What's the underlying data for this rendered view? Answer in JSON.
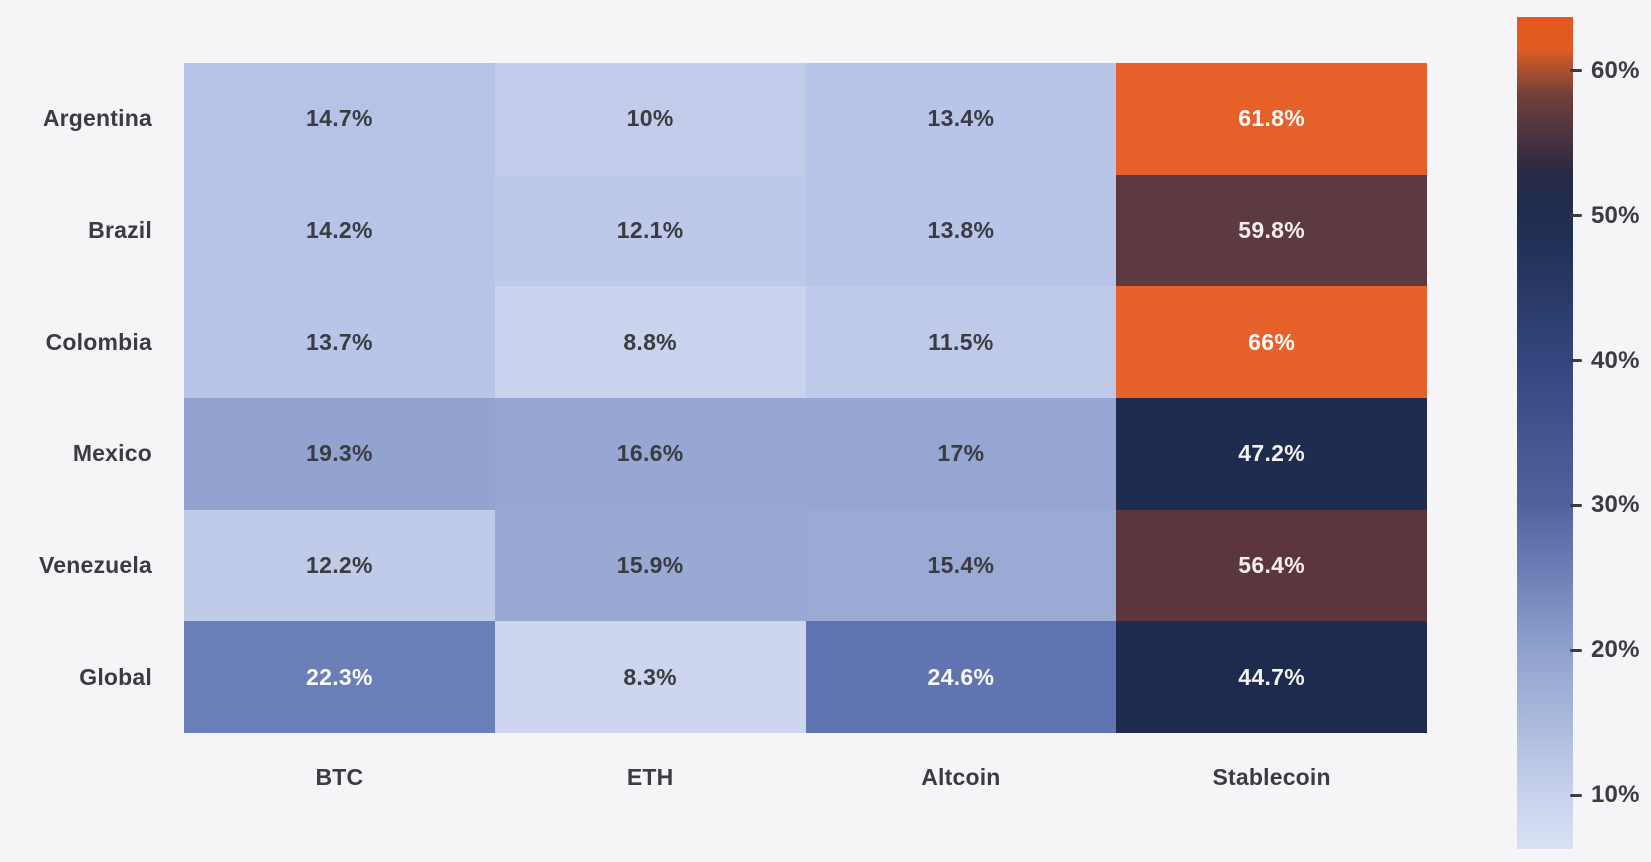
{
  "page": {
    "background": "#f5f4f6",
    "label_color": "#3b3b42"
  },
  "chart_data": {
    "type": "heatmap",
    "title": "",
    "rows": [
      "Argentina",
      "Brazil",
      "Colombia",
      "Mexico",
      "Venezuela",
      "Global"
    ],
    "columns": [
      "BTC",
      "ETH",
      "Altcoin",
      "Stablecoin"
    ],
    "unit": "%",
    "legend_position": "right-colorbar",
    "grid": false,
    "cells": [
      [
        {
          "value": 14.7,
          "label": "14.7%",
          "bg": "#b6c3e7",
          "fg": "#3b3b42"
        },
        {
          "value": 10,
          "label": "10%",
          "bg": "#c3cdeb",
          "fg": "#3b3b42"
        },
        {
          "value": 13.4,
          "label": "13.4%",
          "bg": "#b8c4e8",
          "fg": "#3b3b42"
        },
        {
          "value": 61.8,
          "label": "61.8%",
          "bg": "#e6612a",
          "fg": "#fdf9f6"
        }
      ],
      [
        {
          "value": 14.2,
          "label": "14.2%",
          "bg": "#b7c4e8",
          "fg": "#3b3b42"
        },
        {
          "value": 12.1,
          "label": "12.1%",
          "bg": "#bec9ea",
          "fg": "#3b3b42"
        },
        {
          "value": 13.8,
          "label": "13.8%",
          "bg": "#b8c5e8",
          "fg": "#3b3b42"
        },
        {
          "value": 59.8,
          "label": "59.8%",
          "bg": "#5d3a42",
          "fg": "#f6efec"
        }
      ],
      [
        {
          "value": 13.7,
          "label": "13.7%",
          "bg": "#b9c5e8",
          "fg": "#3b3b42"
        },
        {
          "value": 8.8,
          "label": "8.8%",
          "bg": "#c9d3ed",
          "fg": "#3b3b42"
        },
        {
          "value": 11.5,
          "label": "11.5%",
          "bg": "#bfcaea",
          "fg": "#3b3b42"
        },
        {
          "value": 66,
          "label": "66%",
          "bg": "#e6622a",
          "fg": "#fdf9f6"
        }
      ],
      [
        {
          "value": 19.3,
          "label": "19.3%",
          "bg": "#93a3d0",
          "fg": "#3b3b42"
        },
        {
          "value": 16.6,
          "label": "16.6%",
          "bg": "#97a6d2",
          "fg": "#3b3b42"
        },
        {
          "value": 17,
          "label": "17%",
          "bg": "#96a5d2",
          "fg": "#3b3b42"
        },
        {
          "value": 47.2,
          "label": "47.2%",
          "bg": "#1f2b4f",
          "fg": "#f4f1ee"
        }
      ],
      [
        {
          "value": 12.2,
          "label": "12.2%",
          "bg": "#c0cbea",
          "fg": "#3b3b42"
        },
        {
          "value": 15.9,
          "label": "15.9%",
          "bg": "#9aa9d4",
          "fg": "#3b3b42"
        },
        {
          "value": 15.4,
          "label": "15.4%",
          "bg": "#9baad4",
          "fg": "#3b3b42"
        },
        {
          "value": 56.4,
          "label": "56.4%",
          "bg": "#5b373d",
          "fg": "#f6efec"
        }
      ],
      [
        {
          "value": 22.3,
          "label": "22.3%",
          "bg": "#6a7eb8",
          "fg": "#fbf9f7"
        },
        {
          "value": 8.3,
          "label": "8.3%",
          "bg": "#cdd6ee",
          "fg": "#3b3b42"
        },
        {
          "value": 24.6,
          "label": "24.6%",
          "bg": "#5f74b1",
          "fg": "#fbf9f7"
        },
        {
          "value": 44.7,
          "label": "44.7%",
          "bg": "#1f2b4e",
          "fg": "#f4f1ee"
        }
      ]
    ],
    "colorbar": {
      "vmin": 6.3,
      "vmax": 63.7,
      "ticks": [
        {
          "value": 60,
          "label": "60%"
        },
        {
          "value": 50,
          "label": "50%"
        },
        {
          "value": 40,
          "label": "40%"
        },
        {
          "value": 30,
          "label": "30%"
        },
        {
          "value": 20,
          "label": "20%"
        },
        {
          "value": 10,
          "label": "10%"
        }
      ],
      "gradient": [
        {
          "value": 63.7,
          "color": "#e4581c"
        },
        {
          "value": 61.5,
          "color": "#df5c25"
        },
        {
          "value": 60.0,
          "color": "#a8512d"
        },
        {
          "value": 58.3,
          "color": "#714039"
        },
        {
          "value": 56.8,
          "color": "#5c393f"
        },
        {
          "value": 55.0,
          "color": "#45303f"
        },
        {
          "value": 53.0,
          "color": "#2b2a45"
        },
        {
          "value": 51.0,
          "color": "#202c4e"
        },
        {
          "value": 47.5,
          "color": "#233259"
        },
        {
          "value": 40.0,
          "color": "#33467e"
        },
        {
          "value": 30.0,
          "color": "#51639c"
        },
        {
          "value": 25.0,
          "color": "#6e82b8"
        },
        {
          "value": 20.0,
          "color": "#8fa2ce"
        },
        {
          "value": 15.0,
          "color": "#abb9dd"
        },
        {
          "value": 10.0,
          "color": "#c8d2ec"
        },
        {
          "value": 6.3,
          "color": "#d8e0f2"
        }
      ]
    }
  }
}
